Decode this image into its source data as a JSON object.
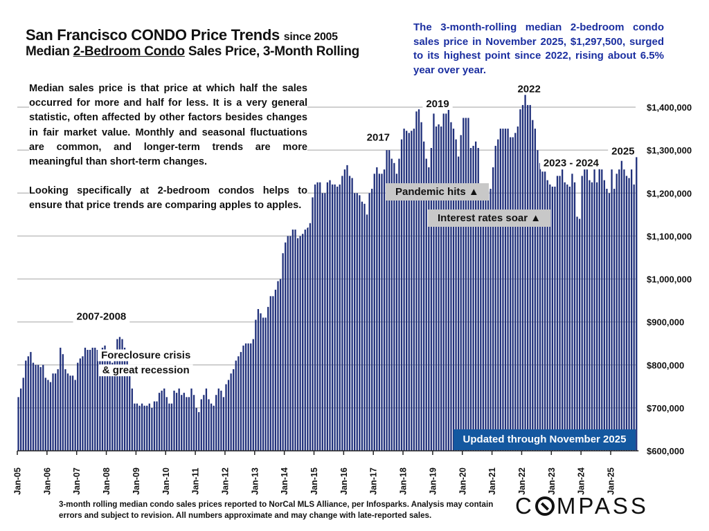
{
  "header": {
    "title": "San Francisco CONDO Price Trends",
    "title_suffix": "since 2005",
    "subtitle_prefix": "Median ",
    "subtitle_underlined": "2-Bedroom Condo",
    "subtitle_suffix": " Sales Price, 3-Month Rolling"
  },
  "callout": "The 3-month-rolling median 2-bedroom condo sales price in November 2025, $1,297,500, surged to its highest point since 2022, rising about 6.5% year over year.",
  "description": [
    "Median sales price is that price at which half the sales occurred for more and half for less. It is a very general statistic, often affected by other factors besides changes in fair market value. Monthly and seasonal fluctuations are common, and longer-term trends are more meaningful than short-term changes.",
    "Looking specifically at 2-bedroom condos helps to ensure that price trends are comparing apples to apples."
  ],
  "badges": {
    "updated": "Updated through November 2025",
    "pandemic": "Pandemic hits ▲",
    "interest": "Interest rates soar ▲"
  },
  "footer": "3-month rolling median condo sales prices reported to NorCal MLS Alliance, per Infosparks. Analysis may contain errors and subject to revision. All numbers approximate and may change with late-reported sales.",
  "logo": {
    "before": "C",
    "after": "MPASS"
  },
  "colors": {
    "bar": "#1f2f7a",
    "callout": "#1a2ea0",
    "badge": "#1458a0",
    "label_box": "#c8c8c8",
    "grid": "#c0c0c0"
  },
  "chart_data": {
    "type": "bar",
    "title": "San Francisco CONDO Price Trends since 2005",
    "subtitle": "Median 2-Bedroom Condo Sales Price, 3-Month Rolling",
    "xlabel": "",
    "ylabel": "",
    "start": "Jan-05",
    "end": "Nov-25",
    "ylim": [
      600000,
      1400000
    ],
    "yticks": [
      600000,
      700000,
      800000,
      900000,
      1000000,
      1100000,
      1200000,
      1300000,
      1400000
    ],
    "ytick_labels": [
      "$600,000",
      "$700,000",
      "$800,000",
      "$900,000",
      "$1,000,000",
      "$1,100,000",
      "$1,200,000",
      "$1,300,000",
      "$1,400,000"
    ],
    "xtick_labels": [
      "Jan-05",
      "Jan-06",
      "Jan-07",
      "Jan-08",
      "Jan-09",
      "Jan-10",
      "Jan-11",
      "Jan-12",
      "Jan-13",
      "Jan-14",
      "Jan-15",
      "Jan-16",
      "Jan-17",
      "Jan-18",
      "Jan-19",
      "Jan-20",
      "Jan-21",
      "Jan-22",
      "Jan-23",
      "Jan-24",
      "Jan-25"
    ],
    "grid": true,
    "y_axis_position": "right",
    "annotations": [
      {
        "text": "2007-2008",
        "x_month": 34,
        "y": 905000
      },
      {
        "text": "Foreclosure crisis",
        "x_month": 52,
        "y": 815000
      },
      {
        "text": "& great recession",
        "x_month": 52,
        "y": 780000
      },
      {
        "text": "2017",
        "x_month": 146,
        "y": 1322000
      },
      {
        "text": "2019",
        "x_month": 170,
        "y": 1400000
      },
      {
        "text": "2022",
        "x_month": 207,
        "y": 1435000
      },
      {
        "text": "2023 - 2024",
        "x_month": 224,
        "y": 1262000
      },
      {
        "text": "2025",
        "x_month": 245,
        "y": 1290000
      }
    ],
    "series": [
      {
        "name": "Median 2BR condo sales price (3-month rolling)",
        "values": [
          725000,
          745000,
          770000,
          810000,
          820000,
          830000,
          805000,
          800000,
          800000,
          795000,
          800000,
          770000,
          765000,
          760000,
          780000,
          780000,
          790000,
          840000,
          825000,
          790000,
          780000,
          775000,
          775000,
          765000,
          805000,
          815000,
          820000,
          840000,
          835000,
          835000,
          840000,
          840000,
          835000,
          820000,
          840000,
          845000,
          830000,
          815000,
          805000,
          820000,
          860000,
          865000,
          860000,
          840000,
          825000,
          780000,
          745000,
          710000,
          710000,
          705000,
          710000,
          705000,
          705000,
          710000,
          700000,
          715000,
          715000,
          735000,
          740000,
          745000,
          725000,
          710000,
          710000,
          740000,
          735000,
          745000,
          730000,
          735000,
          725000,
          725000,
          745000,
          730000,
          700000,
          690000,
          720000,
          730000,
          745000,
          720000,
          710000,
          705000,
          730000,
          745000,
          740000,
          725000,
          755000,
          765000,
          780000,
          790000,
          810000,
          820000,
          830000,
          845000,
          850000,
          850000,
          850000,
          860000,
          905000,
          930000,
          920000,
          910000,
          910000,
          935000,
          960000,
          960000,
          975000,
          995000,
          1000000,
          1060000,
          1085000,
          1100000,
          1100000,
          1115000,
          1115000,
          1095000,
          1100000,
          1105000,
          1115000,
          1120000,
          1130000,
          1190000,
          1220000,
          1225000,
          1225000,
          1200000,
          1200000,
          1225000,
          1230000,
          1220000,
          1220000,
          1215000,
          1220000,
          1240000,
          1255000,
          1265000,
          1240000,
          1235000,
          1200000,
          1200000,
          1195000,
          1180000,
          1175000,
          1150000,
          1200000,
          1210000,
          1245000,
          1260000,
          1245000,
          1245000,
          1255000,
          1300000,
          1300000,
          1280000,
          1270000,
          1245000,
          1280000,
          1325000,
          1350000,
          1345000,
          1340000,
          1345000,
          1350000,
          1390000,
          1395000,
          1365000,
          1320000,
          1280000,
          1260000,
          1305000,
          1385000,
          1355000,
          1360000,
          1355000,
          1385000,
          1385000,
          1400000,
          1365000,
          1350000,
          1325000,
          1285000,
          1335000,
          1375000,
          1375000,
          1375000,
          1305000,
          1310000,
          1320000,
          1305000,
          1200000,
          1210000,
          1215000,
          1205000,
          1210000,
          1260000,
          1310000,
          1325000,
          1350000,
          1350000,
          1350000,
          1350000,
          1330000,
          1330000,
          1340000,
          1355000,
          1395000,
          1405000,
          1430000,
          1405000,
          1405000,
          1370000,
          1350000,
          1300000,
          1270000,
          1250000,
          1250000,
          1230000,
          1220000,
          1215000,
          1215000,
          1240000,
          1240000,
          1255000,
          1225000,
          1220000,
          1215000,
          1245000,
          1225000,
          1145000,
          1140000,
          1240000,
          1255000,
          1255000,
          1230000,
          1225000,
          1255000,
          1225000,
          1265000,
          1255000,
          1230000,
          1210000,
          1200000,
          1255000,
          1210000,
          1245000,
          1255000,
          1275000,
          1255000,
          1240000,
          1235000,
          1255000,
          1220000,
          1297500
        ]
      }
    ]
  }
}
